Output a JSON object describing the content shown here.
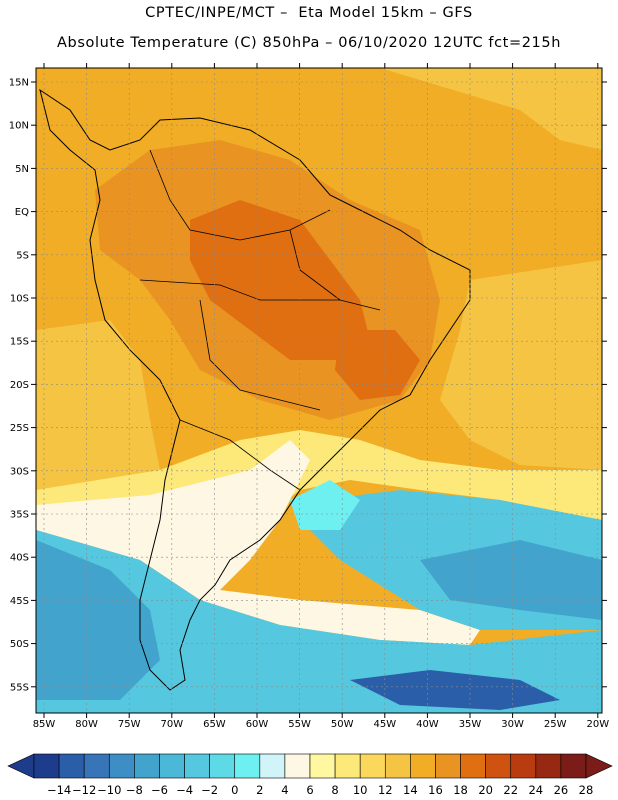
{
  "header": {
    "line1": "CPTEC/INPE/MCT –  Eta Model 15km – GFS",
    "line2": "Absolute Temperature (C) 850hPa – 06/10/2020 12UTC fct=215h"
  },
  "map": {
    "region": "South America",
    "variable": "Absolute Temperature (C) 850hPa",
    "lat_labels": [
      "15N",
      "10N",
      "5N",
      "EQ",
      "5S",
      "10S",
      "15S",
      "20S",
      "25S",
      "30S",
      "35S",
      "40S",
      "45S",
      "50S",
      "55S"
    ],
    "lon_labels": [
      "85W",
      "80W",
      "75W",
      "70W",
      "65W",
      "60W",
      "55W",
      "50W",
      "45W",
      "40W",
      "35W",
      "30W",
      "25W",
      "20W"
    ]
  },
  "legend": {
    "labels": [
      "-14",
      "-12",
      "-10",
      "-8",
      "-6",
      "-4",
      "-2",
      "0",
      "2",
      "4",
      "6",
      "8",
      "10",
      "12",
      "14",
      "16",
      "18",
      "20",
      "22",
      "24",
      "26",
      "28"
    ],
    "colors": [
      "#1e3c8c",
      "#2b5ea8",
      "#3874b8",
      "#3d8ec4",
      "#42a4cc",
      "#4ab8d6",
      "#55c8df",
      "#5ed9e6",
      "#6ef0f0",
      "#d0f4f8",
      "#fdf7e4",
      "#fff8a0",
      "#fde979",
      "#fbd85c",
      "#f6c443",
      "#f1ad25",
      "#e99323",
      "#e06f12",
      "#d05211",
      "#b83c0f",
      "#972812",
      "#7b1c19"
    ],
    "left_arrow_color": "#1e3c8c",
    "right_arrow_color": "#7b1c19"
  }
}
